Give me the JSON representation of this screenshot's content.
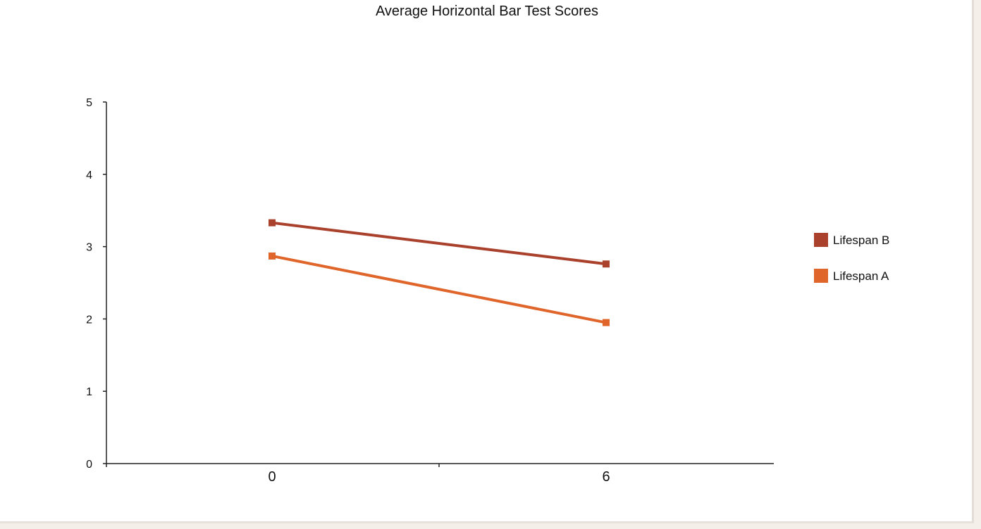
{
  "chart_data": {
    "type": "line",
    "title": "Average Horizontal Bar Test Scores",
    "xlabel": "",
    "ylabel": "",
    "x": [
      0,
      6
    ],
    "x_tick_labels": [
      "0",
      "6"
    ],
    "ylim": [
      0,
      5
    ],
    "y_ticks": [
      0,
      1,
      2,
      3,
      4,
      5
    ],
    "grid": false,
    "legend_position": "right",
    "series": [
      {
        "name": "Lifespan B",
        "values": [
          3.33,
          2.76
        ],
        "color": "#a9412c"
      },
      {
        "name": "Lifespan A",
        "values": [
          2.87,
          1.95
        ],
        "color": "#e0652b"
      }
    ]
  }
}
